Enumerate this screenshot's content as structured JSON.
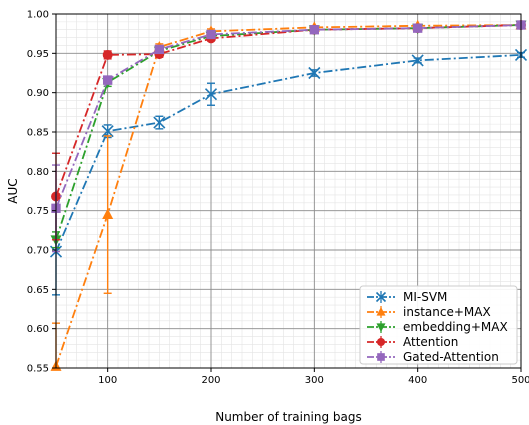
{
  "chart_data": {
    "type": "line",
    "xlabel": "Number of training bags",
    "ylabel": "AUC",
    "xlim": [
      50,
      500
    ],
    "ylim": [
      0.55,
      1.0
    ],
    "x_ticks": [
      100,
      200,
      300,
      400,
      500
    ],
    "x_minor_step": 10,
    "y_ticks": [
      0.55,
      0.6,
      0.65,
      0.7,
      0.75,
      0.8,
      0.85,
      0.9,
      0.95,
      1.0
    ],
    "y_tick_labels": [
      "0.55",
      "0.60",
      "0.65",
      "0.70",
      "0.75",
      "0.80",
      "0.85",
      "0.90",
      "0.95",
      "1.00"
    ],
    "y_minor_step": 0.01,
    "grid": true,
    "legend_position": "bottom-right",
    "x": [
      50,
      100,
      150,
      200,
      300,
      400,
      500
    ],
    "series": [
      {
        "name": "MI-SVM",
        "color": "#1f77b4",
        "marker": "x",
        "linestyle": "dashdot",
        "values": [
          0.698,
          0.851,
          0.862,
          0.898,
          0.925,
          0.941,
          0.948
        ],
        "errors": [
          0.055,
          0.008,
          0.008,
          0.014,
          0.004,
          0.003,
          0.003
        ]
      },
      {
        "name": "instance+MAX",
        "color": "#ff7f0e",
        "marker": "triangle-up",
        "linestyle": "dashdot",
        "values": [
          0.552,
          0.745,
          0.958,
          0.978,
          0.983,
          0.985,
          0.986
        ],
        "errors": [
          0.055,
          0.1,
          0.004,
          0.003,
          0.002,
          0.002,
          0.002
        ]
      },
      {
        "name": "embedding+MAX",
        "color": "#2ca02c",
        "marker": "triangle-down",
        "linestyle": "dashdot",
        "values": [
          0.713,
          0.913,
          0.953,
          0.972,
          0.98,
          0.982,
          0.986
        ],
        "errors": [
          0.01,
          0.005,
          0.004,
          0.003,
          0.002,
          0.002,
          0.002
        ]
      },
      {
        "name": "Attention",
        "color": "#d62728",
        "marker": "circle",
        "linestyle": "dashdot",
        "values": [
          0.768,
          0.948,
          0.949,
          0.969,
          0.98,
          0.982,
          0.986
        ],
        "errors": [
          0.055,
          0.005,
          0.004,
          0.003,
          0.002,
          0.002,
          0.002
        ]
      },
      {
        "name": "Gated-Attention",
        "color": "#9467bd",
        "marker": "square",
        "linestyle": "dashdot",
        "values": [
          0.753,
          0.916,
          0.955,
          0.974,
          0.98,
          0.982,
          0.986
        ],
        "errors": [
          0.055,
          0.005,
          0.004,
          0.003,
          0.002,
          0.002,
          0.002
        ]
      }
    ]
  }
}
